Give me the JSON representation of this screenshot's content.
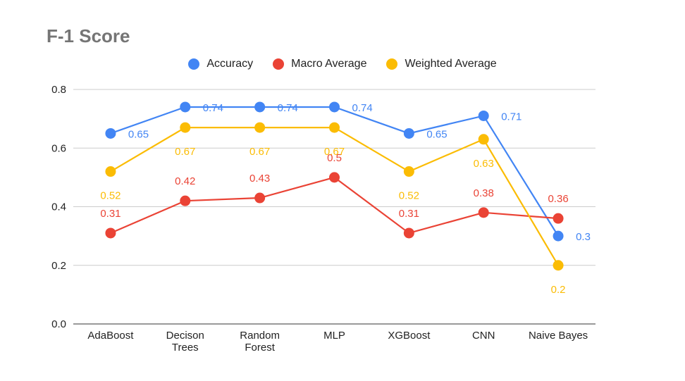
{
  "chart_data": {
    "type": "line",
    "title": "F-1 Score",
    "xlabel": "",
    "ylabel": "",
    "categories": [
      [
        "AdaBoost"
      ],
      [
        "Decison",
        "Trees"
      ],
      [
        "Random",
        "Forest"
      ],
      [
        "MLP"
      ],
      [
        "XGBoost"
      ],
      [
        "CNN"
      ],
      [
        "Naive Bayes"
      ]
    ],
    "ylim": [
      0,
      0.8
    ],
    "yticks": [
      "0.0",
      "0.2",
      "0.4",
      "0.6",
      "0.8"
    ],
    "legend_position": "top",
    "grid": true,
    "series": [
      {
        "name": "Accuracy",
        "color": "#4285F4",
        "values": [
          0.65,
          0.74,
          0.74,
          0.74,
          0.65,
          0.71,
          0.3
        ],
        "labels": [
          "0.65",
          "0.74",
          "0.74",
          "0.74",
          "0.65",
          "0.71",
          "0.3"
        ]
      },
      {
        "name": "Macro Average",
        "color": "#EA4335",
        "values": [
          0.31,
          0.42,
          0.43,
          0.5,
          0.31,
          0.38,
          0.36
        ],
        "labels": [
          "0.31",
          "0.42",
          "0.43",
          "0.5",
          "0.31",
          "0.38",
          "0.36"
        ]
      },
      {
        "name": "Weighted Average",
        "color": "#FBBC04",
        "values": [
          0.52,
          0.67,
          0.67,
          0.67,
          0.52,
          0.63,
          0.2
        ],
        "labels": [
          "0.52",
          "0.67",
          "0.67",
          "0.67",
          "0.52",
          "0.63",
          "0.2"
        ]
      }
    ]
  }
}
